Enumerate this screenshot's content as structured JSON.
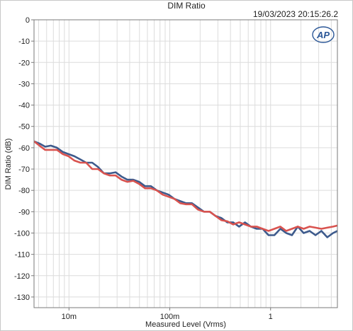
{
  "chart_data": {
    "type": "line",
    "title": "DIM Ratio",
    "timestamp": "19/03/2023 20:15:26.2",
    "logo": "AP",
    "xlabel": "Measured Level (Vrms)",
    "ylabel": "DIM Ratio (dB)",
    "x_scale": "log",
    "xlim": [
      0.0045,
      4.6
    ],
    "ylim": [
      -135,
      0
    ],
    "grid": true,
    "y_ticks": [
      0,
      -10,
      -20,
      -30,
      -40,
      -50,
      -60,
      -70,
      -80,
      -90,
      -100,
      -110,
      -120,
      -130
    ],
    "y_tick_labels": [
      "0",
      "-10",
      "-20",
      "-30",
      "-40",
      "-50",
      "-60",
      "-70",
      "-80",
      "-90",
      "-100",
      "-110",
      "-120",
      "-130"
    ],
    "x_ticks": [
      0.01,
      0.1,
      1
    ],
    "x_tick_labels": [
      "10m",
      "100m",
      "1"
    ],
    "colors": {
      "blue": "#3d5a8c",
      "red": "#d9534f",
      "grid": "#dcdcdc",
      "axis": "#7a7a7a"
    },
    "series": [
      {
        "color": "#3d5a8c",
        "x": [
          0.0045,
          0.0051,
          0.0058,
          0.0066,
          0.0076,
          0.0087,
          0.0099,
          0.0113,
          0.013,
          0.0148,
          0.017,
          0.0194,
          0.0222,
          0.0254,
          0.029,
          0.0332,
          0.038,
          0.0434,
          0.0497,
          0.0568,
          0.065,
          0.0743,
          0.085,
          0.0972,
          0.111,
          0.127,
          0.145,
          0.166,
          0.19,
          0.218,
          0.249,
          0.285,
          0.326,
          0.372,
          0.426,
          0.487,
          0.557,
          0.637,
          0.729,
          0.833,
          0.953,
          1.09,
          1.25,
          1.43,
          1.63,
          1.86,
          2.13,
          2.44,
          2.79,
          3.19,
          3.65,
          4.17,
          4.6
        ],
        "y": [
          -57,
          -58,
          -59.5,
          -59,
          -60,
          -62,
          -63,
          -64,
          -65.5,
          -67,
          -67,
          -69,
          -72,
          -72,
          -71.5,
          -73.5,
          -75,
          -75,
          -76,
          -78,
          -78,
          -80,
          -81,
          -82,
          -84,
          -85,
          -86,
          -86,
          -88,
          -90,
          -90,
          -92,
          -93,
          -95,
          -95,
          -97,
          -95,
          -97,
          -98,
          -98,
          -101,
          -101,
          -98,
          -100,
          -101,
          -97,
          -100,
          -99,
          -101,
          -99,
          -102,
          -100,
          -99
        ]
      },
      {
        "color": "#d9534f",
        "x": [
          0.0045,
          0.0051,
          0.0058,
          0.0066,
          0.0076,
          0.0087,
          0.0099,
          0.0113,
          0.013,
          0.0148,
          0.017,
          0.0194,
          0.0222,
          0.0254,
          0.029,
          0.0332,
          0.038,
          0.0434,
          0.0497,
          0.0568,
          0.065,
          0.0743,
          0.085,
          0.0972,
          0.111,
          0.127,
          0.145,
          0.166,
          0.19,
          0.218,
          0.249,
          0.285,
          0.326,
          0.372,
          0.426,
          0.487,
          0.557,
          0.637,
          0.729,
          0.833,
          0.953,
          1.09,
          1.25,
          1.43,
          1.63,
          1.86,
          2.13,
          2.44,
          2.79,
          3.19,
          3.65,
          4.17,
          4.6
        ],
        "y": [
          -57,
          -59,
          -61,
          -61,
          -61,
          -63,
          -64,
          -66,
          -67,
          -67,
          -70,
          -70,
          -72,
          -73,
          -73,
          -75,
          -76,
          -75.5,
          -77,
          -79,
          -79,
          -80,
          -82,
          -83,
          -84,
          -86,
          -86.5,
          -86.5,
          -89,
          -90,
          -90,
          -92,
          -94,
          -94.5,
          -96,
          -95,
          -96,
          -97,
          -97,
          -98,
          -99,
          -98,
          -97,
          -99,
          -98,
          -97,
          -98,
          -97,
          -97.5,
          -98,
          -97.5,
          -97,
          -96.5
        ]
      }
    ]
  }
}
